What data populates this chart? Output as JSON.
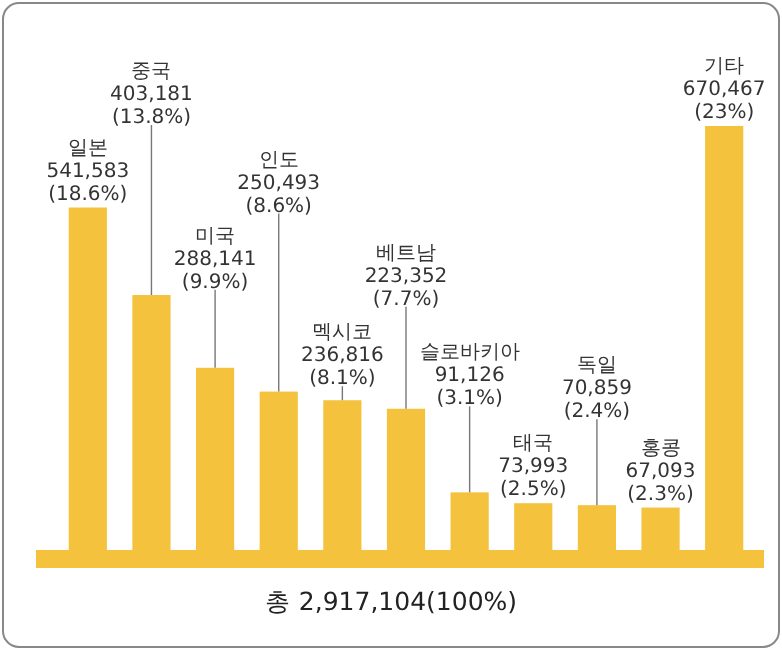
{
  "chart_data": {
    "type": "bar",
    "categories": [
      "일본",
      "중국",
      "미국",
      "인도",
      "멕시코",
      "베트남",
      "슬로바키아",
      "태국",
      "독일",
      "홍콩",
      "기타"
    ],
    "values": [
      541583,
      403181,
      288141,
      250493,
      236816,
      223352,
      91126,
      73993,
      70859,
      67093,
      670467
    ],
    "value_labels": [
      "541,583 (18.6%)",
      "403,181 (13.8%)",
      "288,141 (9.9%)",
      "250,493 (8.6%)",
      "236,816 (8.1%)",
      "223,352 (7.7%)",
      "91,126 (3.1%)",
      "73,993 (2.5%)",
      "70,859 (2.4%)",
      "67,093 (2.3%)",
      "670,467 (23%)"
    ],
    "color": "#f4c23c",
    "annotations": [
      "총 2,917,104(100%)"
    ]
  }
}
